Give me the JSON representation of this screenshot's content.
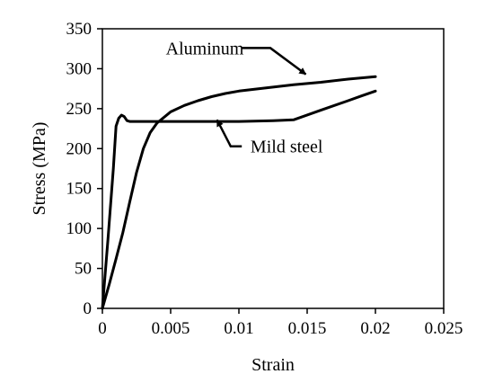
{
  "chart_data": {
    "type": "line",
    "title": "",
    "xlabel": "Strain",
    "ylabel": "Stress (MPa)",
    "xlim": [
      0,
      0.025
    ],
    "ylim": [
      0,
      350
    ],
    "x_ticks": [
      {
        "value": 0,
        "label": "0"
      },
      {
        "value": 0.005,
        "label": "0.005"
      },
      {
        "value": 0.01,
        "label": "0.01"
      },
      {
        "value": 0.015,
        "label": "0.015"
      },
      {
        "value": 0.02,
        "label": "0.02"
      },
      {
        "value": 0.025,
        "label": "0.025"
      }
    ],
    "y_ticks": [
      {
        "value": 0,
        "label": "0"
      },
      {
        "value": 50,
        "label": "50"
      },
      {
        "value": 100,
        "label": "100"
      },
      {
        "value": 150,
        "label": "150"
      },
      {
        "value": 200,
        "label": "200"
      },
      {
        "value": 250,
        "label": "250"
      },
      {
        "value": 300,
        "label": "300"
      },
      {
        "value": 350,
        "label": "350"
      }
    ],
    "grid": false,
    "legend": "none",
    "series": [
      {
        "name": "Aluminum",
        "color": "#000000",
        "points": [
          [
            0,
            0
          ],
          [
            0.0005,
            30
          ],
          [
            0.001,
            62
          ],
          [
            0.0015,
            95
          ],
          [
            0.002,
            133
          ],
          [
            0.0025,
            170
          ],
          [
            0.003,
            200
          ],
          [
            0.0035,
            220
          ],
          [
            0.004,
            232
          ],
          [
            0.005,
            246
          ],
          [
            0.006,
            254
          ],
          [
            0.007,
            260
          ],
          [
            0.008,
            265
          ],
          [
            0.009,
            269
          ],
          [
            0.01,
            272
          ],
          [
            0.012,
            276
          ],
          [
            0.014,
            280
          ],
          [
            0.016,
            283
          ],
          [
            0.018,
            287
          ],
          [
            0.02,
            290
          ]
        ]
      },
      {
        "name": "Mild steel",
        "color": "#000000",
        "points": [
          [
            0,
            0
          ],
          [
            0.0004,
            85
          ],
          [
            0.0008,
            175
          ],
          [
            0.001,
            228
          ],
          [
            0.0012,
            238
          ],
          [
            0.0014,
            242
          ],
          [
            0.0016,
            240
          ],
          [
            0.0018,
            235
          ],
          [
            0.002,
            234
          ],
          [
            0.005,
            234
          ],
          [
            0.01,
            234
          ],
          [
            0.0125,
            235
          ],
          [
            0.014,
            236
          ],
          [
            0.016,
            248
          ],
          [
            0.018,
            260
          ],
          [
            0.019,
            266
          ],
          [
            0.02,
            272
          ]
        ]
      }
    ],
    "annotations": [
      {
        "text": "Aluminum",
        "series": "Aluminum",
        "text_at": [
          0.0075,
          318
        ],
        "arrow_to": [
          0.0149,
          293
        ]
      },
      {
        "text": "Mild steel",
        "series": "Mild steel",
        "text_at": [
          0.0135,
          195
        ],
        "arrow_to": [
          0.0084,
          236
        ]
      }
    ]
  }
}
